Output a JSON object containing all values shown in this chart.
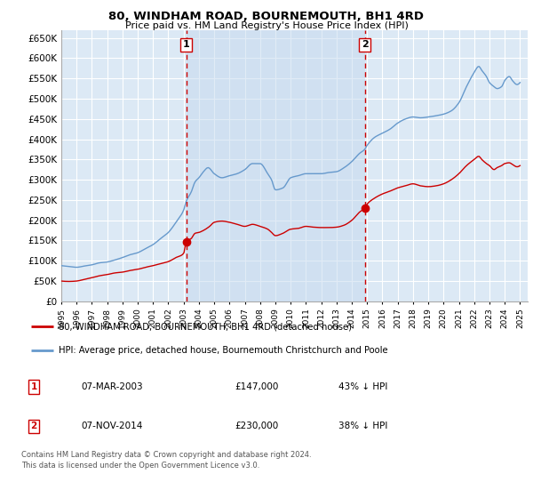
{
  "title": "80, WINDHAM ROAD, BOURNEMOUTH, BH1 4RD",
  "subtitle": "Price paid vs. HM Land Registry's House Price Index (HPI)",
  "background_color": "#ffffff",
  "plot_bg_color": "#dce9f5",
  "grid_color": "#ffffff",
  "sale1_date_label": "07-MAR-2003",
  "sale1_price": 147000,
  "sale1_pct": "43% ↓ HPI",
  "sale2_date_label": "07-NOV-2014",
  "sale2_price": 230000,
  "sale2_pct": "38% ↓ HPI",
  "legend_line1": "80, WINDHAM ROAD, BOURNEMOUTH, BH1 4RD (detached house)",
  "legend_line2": "HPI: Average price, detached house, Bournemouth Christchurch and Poole",
  "footer": "Contains HM Land Registry data © Crown copyright and database right 2024.\nThis data is licensed under the Open Government Licence v3.0.",
  "red_line_color": "#cc0000",
  "blue_line_color": "#6699cc",
  "fill_color": "#c5d9ef",
  "sale_marker_color": "#cc0000",
  "dashed_line_color": "#cc0000",
  "ylim": [
    0,
    670000
  ],
  "yticks": [
    0,
    50000,
    100000,
    150000,
    200000,
    250000,
    300000,
    350000,
    400000,
    450000,
    500000,
    550000,
    600000,
    650000
  ],
  "sale1_year": 2003.17,
  "sale2_year": 2014.84
}
